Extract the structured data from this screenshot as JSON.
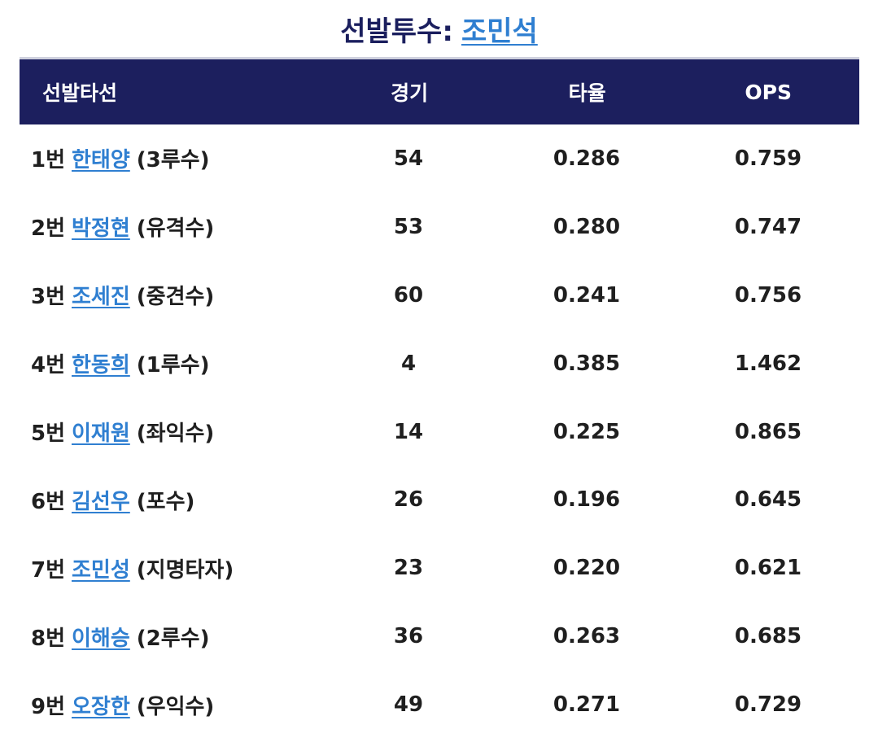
{
  "title": {
    "prefix": "선발투수:",
    "pitcher": "조민석"
  },
  "table": {
    "headers": {
      "batter": "선발타선",
      "games": "경기",
      "avg": "타율",
      "ops": "OPS"
    },
    "rows": [
      {
        "order": "1번",
        "name": "한태양",
        "position": "(3루수)",
        "games": "54",
        "avg": "0.286",
        "ops": "0.759"
      },
      {
        "order": "2번",
        "name": "박정현",
        "position": "(유격수)",
        "games": "53",
        "avg": "0.280",
        "ops": "0.747"
      },
      {
        "order": "3번",
        "name": "조세진",
        "position": "(중견수)",
        "games": "60",
        "avg": "0.241",
        "ops": "0.756"
      },
      {
        "order": "4번",
        "name": "한동희",
        "position": "(1루수)",
        "games": "4",
        "avg": "0.385",
        "ops": "1.462"
      },
      {
        "order": "5번",
        "name": "이재원",
        "position": "(좌익수)",
        "games": "14",
        "avg": "0.225",
        "ops": "0.865"
      },
      {
        "order": "6번",
        "name": "김선우",
        "position": "(포수)",
        "games": "26",
        "avg": "0.196",
        "ops": "0.645"
      },
      {
        "order": "7번",
        "name": "조민성",
        "position": "(지명타자)",
        "games": "23",
        "avg": "0.220",
        "ops": "0.621"
      },
      {
        "order": "8번",
        "name": "이해승",
        "position": "(2루수)",
        "games": "36",
        "avg": "0.263",
        "ops": "0.685"
      },
      {
        "order": "9번",
        "name": "오장한",
        "position": "(우익수)",
        "games": "49",
        "avg": "0.271",
        "ops": "0.729"
      }
    ]
  },
  "colors": {
    "header_bg": "#1c1f5e",
    "title_text": "#1b1f5e",
    "link": "#2f7fd1"
  }
}
